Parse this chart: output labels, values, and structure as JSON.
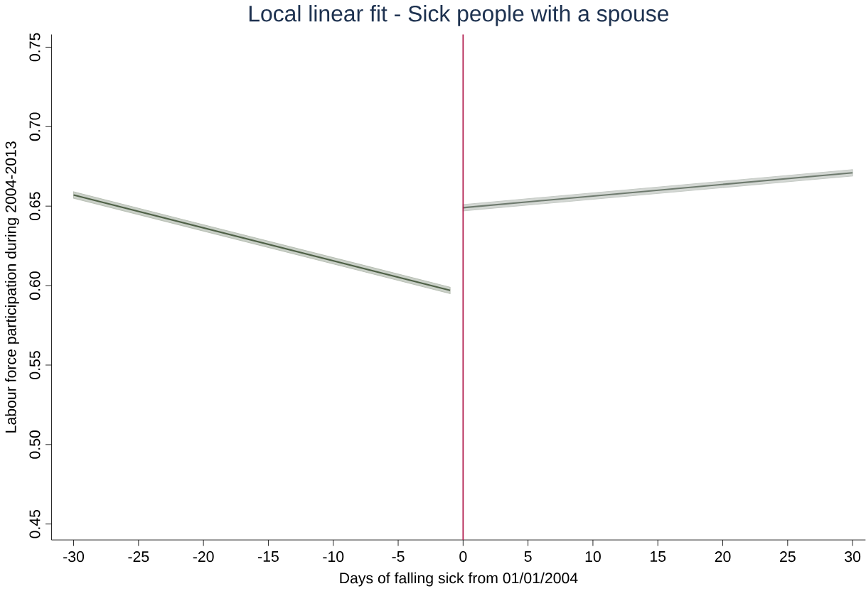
{
  "chart_data": {
    "type": "line",
    "title": "Local linear fit - Sick people with a spouse",
    "xlabel": "Days of falling sick from 01/01/2004",
    "ylabel": "Labour force participation during 2004-2013",
    "series": [
      {
        "x": [
          -30,
          -1
        ],
        "values": [
          0.657,
          0.597
        ],
        "lower": [
          0.655,
          0.595
        ],
        "upper": [
          0.659,
          0.599
        ],
        "color": "#4f6147"
      },
      {
        "x": [
          0,
          30
        ],
        "values": [
          0.649,
          0.671
        ],
        "lower": [
          0.647,
          0.669
        ],
        "upper": [
          0.651,
          0.673
        ],
        "color": "#6e7a6e"
      }
    ],
    "xlim": [
      -31.7,
      31
    ],
    "ylim": [
      0.44,
      0.758
    ],
    "xticks": [
      -30,
      -25,
      -20,
      -15,
      -10,
      -5,
      0,
      5,
      10,
      15,
      20,
      25,
      30
    ],
    "yticks": [
      0.45,
      {
        "value": 0.5,
        "label": "0.50"
      },
      0.55,
      {
        "value": 0.6,
        "label": "0.60"
      },
      0.65,
      {
        "value": 0.7,
        "label": "0.70"
      },
      0.75
    ],
    "ref_lines": [
      {
        "axis": "x",
        "value": 0,
        "color": "#b0174a"
      }
    ],
    "marker": "none",
    "line_style": "solid"
  }
}
